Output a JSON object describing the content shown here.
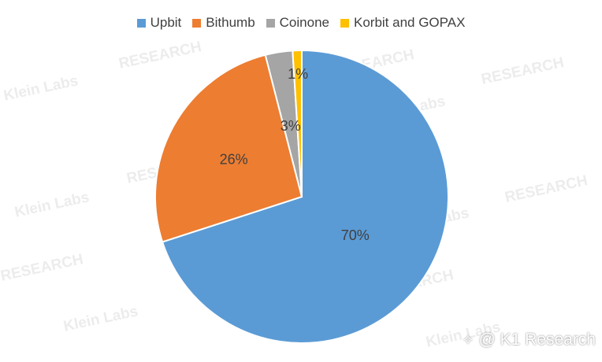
{
  "chart_data": {
    "type": "pie",
    "legend_position": "top",
    "categories": [
      "Upbit",
      "Bithumb",
      "Coinone",
      "Korbit and GOPAX"
    ],
    "values": [
      70,
      26,
      3,
      1
    ],
    "labels": [
      "70%",
      "26%",
      "3%",
      "1%"
    ],
    "colors": [
      "#5B9BD5",
      "#ED7D31",
      "#A5A5A5",
      "#FFC000"
    ]
  },
  "watermarks": {
    "brand_a": "Klein Labs",
    "brand_b": "RESEARCH"
  },
  "credit": {
    "text": "@ K1 Research",
    "icon": "share-icon"
  }
}
